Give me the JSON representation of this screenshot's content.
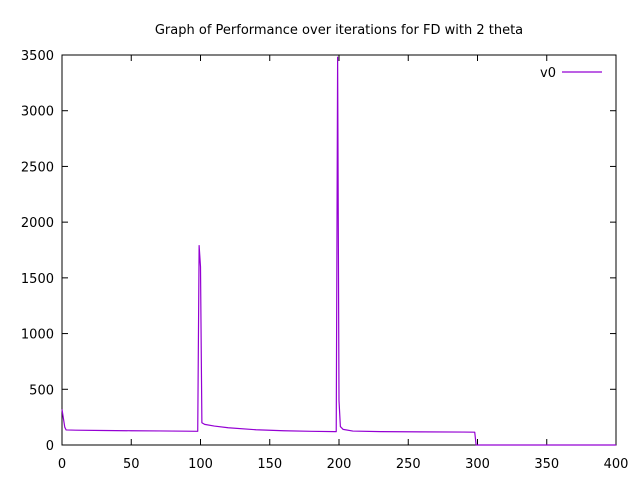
{
  "chart_data": {
    "type": "line",
    "title": "Graph of Performance over iterations for FD with 2 theta",
    "xlabel": "",
    "ylabel": "",
    "xlim": [
      0,
      400
    ],
    "ylim": [
      0,
      3500
    ],
    "x_ticks": [
      0,
      50,
      100,
      150,
      200,
      250,
      300,
      350,
      400
    ],
    "y_ticks": [
      0,
      500,
      1000,
      1500,
      2000,
      2500,
      3000,
      3500
    ],
    "grid": false,
    "legend_position": "top-right",
    "series": [
      {
        "name": "v0",
        "color": "#9400d3",
        "points": [
          [
            0,
            320
          ],
          [
            1,
            240
          ],
          [
            2,
            160
          ],
          [
            3,
            135
          ],
          [
            10,
            133
          ],
          [
            30,
            130
          ],
          [
            50,
            128
          ],
          [
            70,
            126
          ],
          [
            90,
            124
          ],
          [
            98,
            123
          ],
          [
            99,
            1790
          ],
          [
            100,
            1600
          ],
          [
            101,
            200
          ],
          [
            103,
            185
          ],
          [
            110,
            170
          ],
          [
            120,
            155
          ],
          [
            140,
            137
          ],
          [
            160,
            128
          ],
          [
            180,
            123
          ],
          [
            197,
            120
          ],
          [
            198,
            120
          ],
          [
            199,
            3480
          ],
          [
            200,
            400
          ],
          [
            201,
            165
          ],
          [
            203,
            140
          ],
          [
            210,
            125
          ],
          [
            230,
            120
          ],
          [
            260,
            118
          ],
          [
            290,
            116
          ],
          [
            298,
            115
          ],
          [
            299,
            0
          ],
          [
            400,
            0
          ]
        ]
      }
    ]
  }
}
